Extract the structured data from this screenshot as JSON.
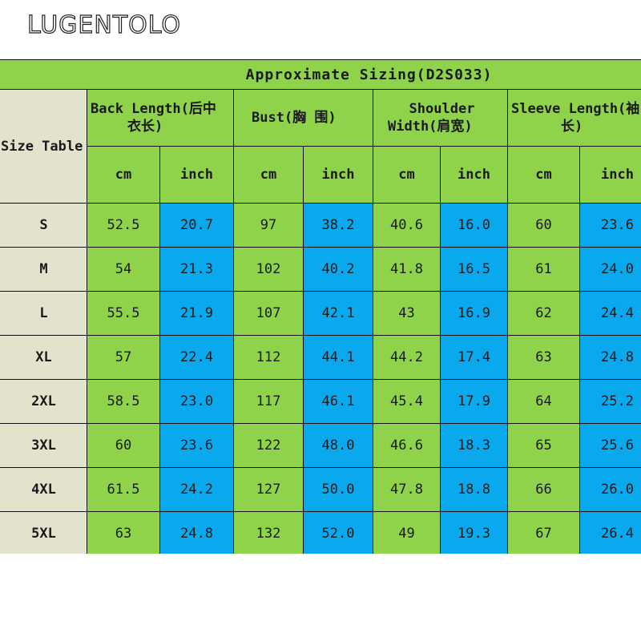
{
  "brand": "LUGENTOLO",
  "table": {
    "title": "Approximate Sizing(D2S033)",
    "size_header": "Size Table",
    "groups": [
      {
        "line1": "Back Length(后中",
        "line2": "衣长)"
      },
      {
        "line1": "Bust(胸 围)",
        "line2": ""
      },
      {
        "line1": "Shoulder",
        "line2": "Width(肩宽)"
      },
      {
        "line1": "Sleeve Length(袖",
        "line2": "长)"
      }
    ],
    "units": [
      "cm",
      "inch",
      "cm",
      "inch",
      "cm",
      "inch",
      "cm",
      "inch"
    ],
    "rows": [
      {
        "size": "S",
        "values": [
          "52.5",
          "20.7",
          "97",
          "38.2",
          "40.6",
          "16.0",
          "60",
          "23.6"
        ]
      },
      {
        "size": "M",
        "values": [
          "54",
          "21.3",
          "102",
          "40.2",
          "41.8",
          "16.5",
          "61",
          "24.0"
        ]
      },
      {
        "size": "L",
        "values": [
          "55.5",
          "21.9",
          "107",
          "42.1",
          "43",
          "16.9",
          "62",
          "24.4"
        ]
      },
      {
        "size": "XL",
        "values": [
          "57",
          "22.4",
          "112",
          "44.1",
          "44.2",
          "17.4",
          "63",
          "24.8"
        ]
      },
      {
        "size": "2XL",
        "values": [
          "58.5",
          "23.0",
          "117",
          "46.1",
          "45.4",
          "17.9",
          "64",
          "25.2"
        ]
      },
      {
        "size": "3XL",
        "values": [
          "60",
          "23.6",
          "122",
          "48.0",
          "46.6",
          "18.3",
          "65",
          "25.6"
        ]
      },
      {
        "size": "4XL",
        "values": [
          "61.5",
          "24.2",
          "127",
          "50.0",
          "47.8",
          "18.8",
          "66",
          "26.0"
        ]
      },
      {
        "size": "5XL",
        "values": [
          "63",
          "24.8",
          "132",
          "52.0",
          "49",
          "19.3",
          "67",
          "26.4"
        ]
      }
    ]
  },
  "colors": {
    "header_green": "#8ed34a",
    "inch_blue": "#0aa8ec",
    "size_column_beige": "#e3e3cd",
    "border": "#111111"
  }
}
